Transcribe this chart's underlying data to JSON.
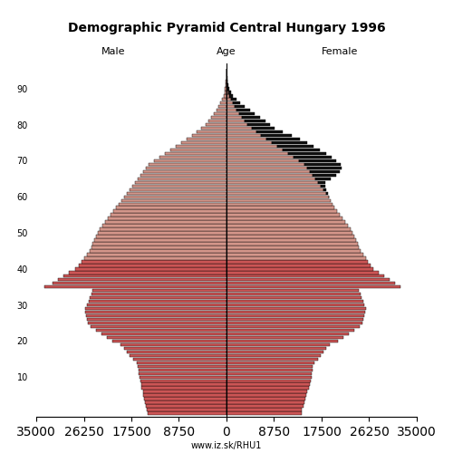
{
  "title": "Demographic Pyramid Central Hungary 1996",
  "label_male": "Male",
  "label_female": "Female",
  "label_age": "Age",
  "source": "www.iz.sk/RHU1",
  "xlim": 35000,
  "bar_color": "#cc5555",
  "bar_color_light": "#d4968a",
  "bar_edge_color": "#000000",
  "bar_color_black": "#111111",
  "ages": [
    0,
    1,
    2,
    3,
    4,
    5,
    6,
    7,
    8,
    9,
    10,
    11,
    12,
    13,
    14,
    15,
    16,
    17,
    18,
    19,
    20,
    21,
    22,
    23,
    24,
    25,
    26,
    27,
    28,
    29,
    30,
    31,
    32,
    33,
    34,
    35,
    36,
    37,
    38,
    39,
    40,
    41,
    42,
    43,
    44,
    45,
    46,
    47,
    48,
    49,
    50,
    51,
    52,
    53,
    54,
    55,
    56,
    57,
    58,
    59,
    60,
    61,
    62,
    63,
    64,
    65,
    66,
    67,
    68,
    69,
    70,
    71,
    72,
    73,
    74,
    75,
    76,
    77,
    78,
    79,
    80,
    81,
    82,
    83,
    84,
    85,
    86,
    87,
    88,
    89,
    90,
    91,
    92,
    93,
    94,
    95
  ],
  "male": [
    14500,
    14600,
    14800,
    15000,
    15100,
    15300,
    15400,
    15600,
    15700,
    15900,
    16000,
    16100,
    16200,
    16300,
    16500,
    17200,
    17800,
    18300,
    18900,
    19500,
    21000,
    22000,
    23000,
    24000,
    25000,
    25500,
    25700,
    25900,
    26000,
    26000,
    25700,
    25400,
    25100,
    24900,
    24600,
    33500,
    32000,
    31000,
    30000,
    29000,
    27800,
    27200,
    26700,
    26200,
    25700,
    25200,
    24900,
    24600,
    24300,
    24000,
    23700,
    23300,
    22800,
    22300,
    21800,
    21300,
    20800,
    20300,
    19800,
    19300,
    18800,
    18300,
    17800,
    17300,
    16800,
    16300,
    15800,
    15300,
    14800,
    14300,
    13300,
    12300,
    11300,
    10300,
    9300,
    8400,
    7400,
    6400,
    5500,
    4600,
    3800,
    3300,
    2800,
    2300,
    1900,
    1500,
    1100,
    800,
    550,
    380,
    250,
    150,
    90,
    50,
    25,
    12
  ],
  "female": [
    13800,
    13900,
    14100,
    14300,
    14500,
    14700,
    14900,
    15100,
    15300,
    15500,
    15600,
    15700,
    15800,
    15900,
    16100,
    16800,
    17300,
    17800,
    18400,
    19000,
    20500,
    21500,
    22500,
    23500,
    24500,
    25000,
    25200,
    25400,
    25500,
    25600,
    25400,
    25100,
    24800,
    24600,
    24300,
    32000,
    31000,
    30000,
    29000,
    28000,
    27000,
    26500,
    26000,
    25600,
    25100,
    24700,
    24400,
    24100,
    23800,
    23500,
    23200,
    22800,
    22300,
    21800,
    21300,
    20800,
    20300,
    19900,
    19500,
    19200,
    18900,
    18600,
    18400,
    18200,
    18100,
    19200,
    20200,
    20800,
    21200,
    21000,
    20200,
    19300,
    18300,
    17200,
    16000,
    14800,
    13500,
    12000,
    10400,
    8800,
    8000,
    7200,
    6200,
    5200,
    4300,
    3400,
    2500,
    1800,
    1200,
    800,
    500,
    300,
    170,
    90,
    45,
    20
  ]
}
